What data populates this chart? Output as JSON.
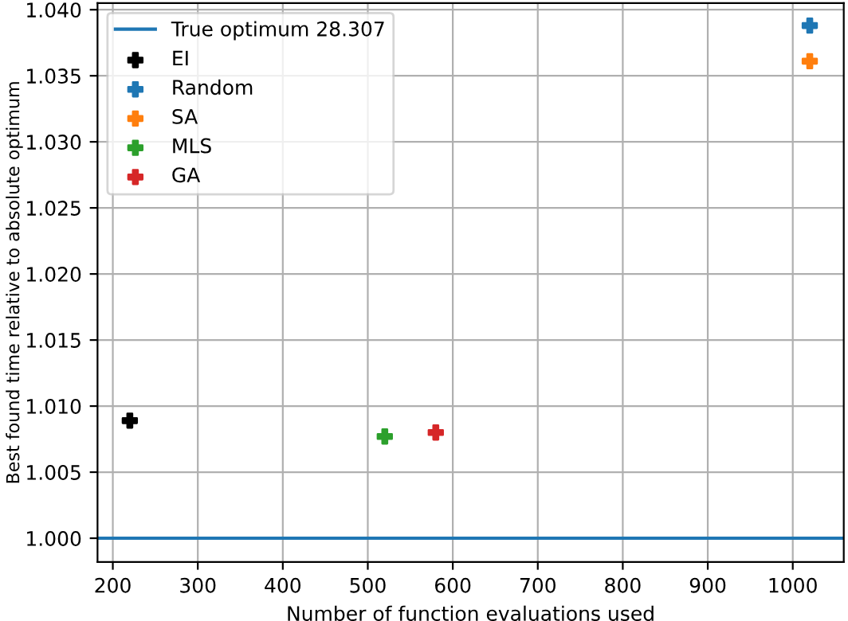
{
  "chart_data": {
    "type": "scatter",
    "xlabel": "Number of function evaluations used",
    "ylabel": "Best found time relative to absolute optimum",
    "xlim": [
      182,
      1060
    ],
    "ylim": [
      0.9982,
      1.0405
    ],
    "xticks": [
      200,
      300,
      400,
      500,
      600,
      700,
      800,
      900,
      1000
    ],
    "yticks": [
      {
        "value": 1.0,
        "label": "1.000"
      },
      {
        "value": 1.005,
        "label": "1.005"
      },
      {
        "value": 1.01,
        "label": "1.010"
      },
      {
        "value": 1.015,
        "label": "1.015"
      },
      {
        "value": 1.02,
        "label": "1.020"
      },
      {
        "value": 1.025,
        "label": "1.025"
      },
      {
        "value": 1.03,
        "label": "1.030"
      },
      {
        "value": 1.035,
        "label": "1.035"
      },
      {
        "value": 1.04,
        "label": "1.040"
      }
    ],
    "grid": true,
    "legend": "top left",
    "marker": "cross",
    "ref_lines": [
      {
        "axis": "y",
        "value": 1.0,
        "label": "True optimum 28.307",
        "color": "#1f77b4"
      }
    ],
    "series": [
      {
        "name": "EI",
        "color": "#000000",
        "x": [
          220
        ],
        "values": [
          1.0089
        ]
      },
      {
        "name": "Random",
        "color": "#1f77b4",
        "x": [
          1020
        ],
        "values": [
          1.0388
        ]
      },
      {
        "name": "SA",
        "color": "#ff7f0e",
        "x": [
          1020
        ],
        "values": [
          1.0361
        ]
      },
      {
        "name": "MLS",
        "color": "#2ca02c",
        "x": [
          520
        ],
        "values": [
          1.0077
        ]
      },
      {
        "name": "GA",
        "color": "#d62728",
        "x": [
          580
        ],
        "values": [
          1.008
        ]
      }
    ]
  }
}
